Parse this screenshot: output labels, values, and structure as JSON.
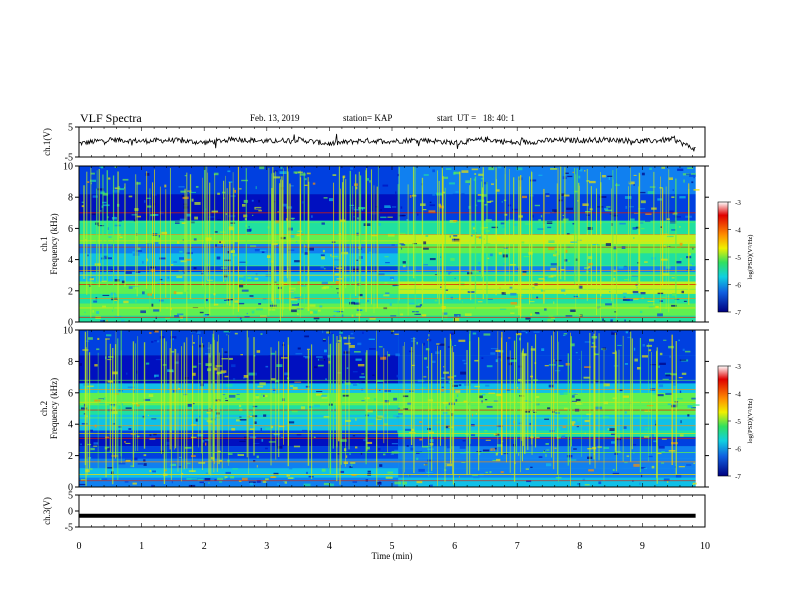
{
  "header": {
    "title": "VLF Spectra",
    "date": "Feb. 13, 2019",
    "station": "station= KAP",
    "start": "start  UT =   18: 40: 1"
  },
  "chart_data": [
    {
      "type": "line",
      "panel": "ch1-waveform",
      "ylabel": "ch.1(V)",
      "ylim": [
        -5,
        5
      ],
      "yticks": [
        5,
        -5
      ],
      "x_range_min": [
        0,
        9.85
      ],
      "description_series": "noisy black trace around 0 V",
      "series": [
        {
          "values_min_x": [
            0,
            0.5,
            1,
            1.5,
            2,
            2.5,
            3,
            3.5,
            4,
            4.5,
            5,
            5.5,
            6,
            6.5,
            7,
            7.5,
            8,
            8.5,
            9,
            9.5,
            9.85
          ],
          "values_v": [
            -0.5,
            0.8,
            0.3,
            0.6,
            -0.2,
            1.0,
            0.2,
            0.8,
            -0.6,
            0.4,
            0.3,
            0.7,
            -0.3,
            0.9,
            -0.4,
            0.5,
            0.6,
            0.8,
            0.2,
            0.9,
            -2.5
          ]
        }
      ]
    },
    {
      "type": "heatmap",
      "panel": "ch1-spectrogram",
      "ylabel": "ch.1",
      "ylabel2": "Frequency  (kHz)",
      "ylim": [
        0,
        10
      ],
      "yticks": [
        0,
        2,
        4,
        6,
        8,
        10
      ],
      "xlim": [
        0,
        10
      ],
      "colorbar": {
        "label": "log(PSD)(V²/Hz)",
        "ticks": [
          -3,
          -4,
          -5,
          -6,
          -7
        ],
        "range": [
          -7,
          -3
        ]
      },
      "transition_min": 5.1
    },
    {
      "type": "heatmap",
      "panel": "ch2-spectrogram",
      "ylabel": "ch.2",
      "ylabel2": "Frequency  (kHz)",
      "ylim": [
        0,
        10
      ],
      "yticks": [
        0,
        2,
        4,
        6,
        8,
        10
      ],
      "xlim": [
        0,
        10
      ],
      "colorbar": {
        "label": "log(PSD)(V²/Hz)",
        "ticks": [
          -3,
          -4,
          -5,
          -6,
          -7
        ],
        "range": [
          -7,
          -3
        ]
      },
      "transition_min": 5.1
    },
    {
      "type": "line",
      "panel": "ch3-waveform",
      "ylabel": "ch.3(V)",
      "ylim": [
        -5,
        5
      ],
      "yticks": [
        5,
        0,
        -5
      ],
      "series": [
        {
          "values_min_x": [
            0,
            9.85
          ],
          "values_v": [
            -1.5,
            -1.5
          ]
        }
      ]
    }
  ],
  "xaxis": {
    "label": "Time  (min)",
    "ticks": [
      "0",
      "1",
      "2",
      "3",
      "4",
      "5",
      "6",
      "7",
      "8",
      "9",
      "10"
    ]
  }
}
